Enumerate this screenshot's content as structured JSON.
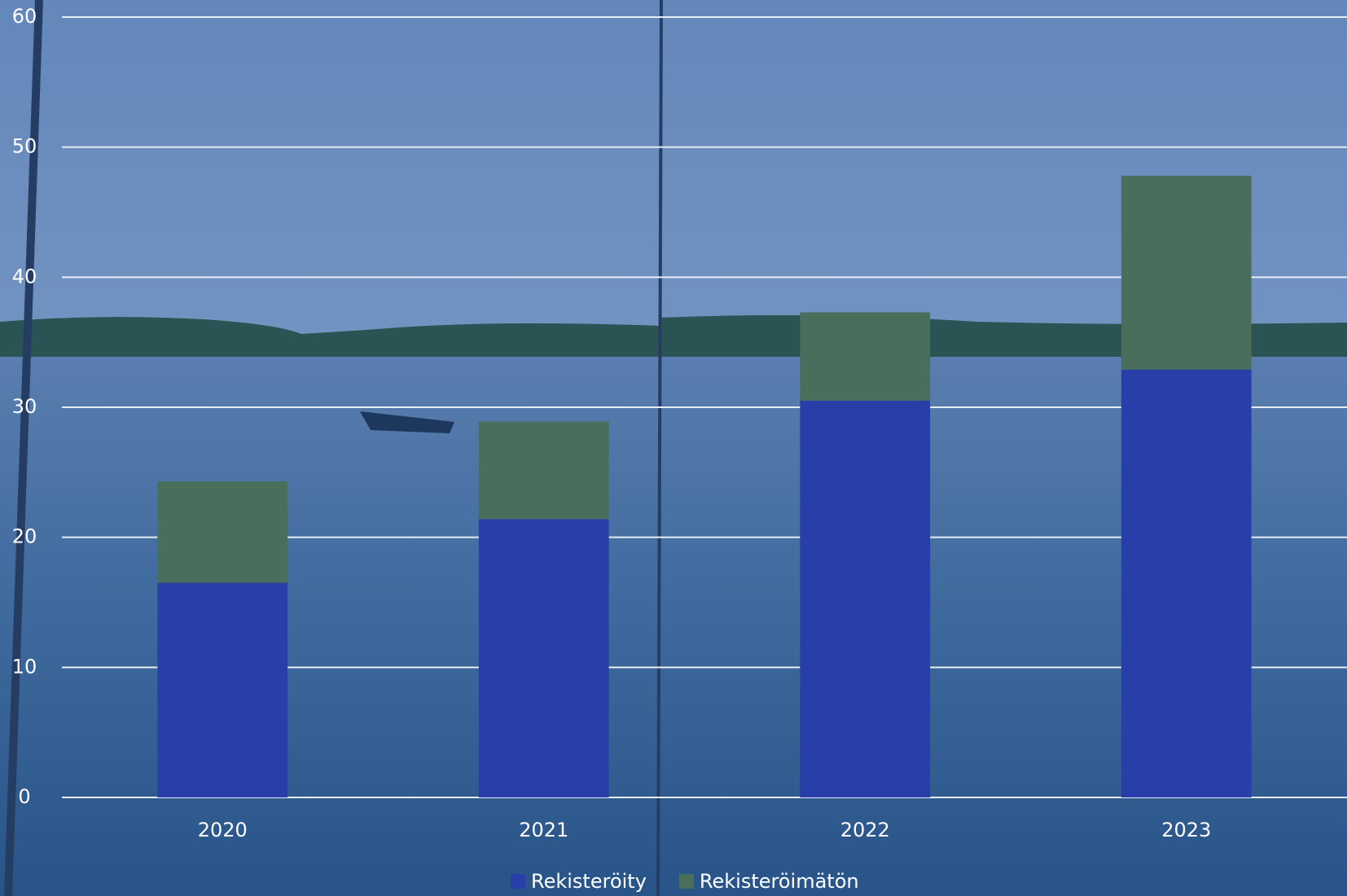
{
  "chart_data": {
    "type": "stacked_bar",
    "categories": [
      "2020",
      "2021",
      "2022",
      "2023"
    ],
    "series": [
      {
        "name": "Rekisteröity",
        "color": "#283ea9",
        "values": [
          16.5,
          21.4,
          30.5,
          32.9
        ]
      },
      {
        "name": "Rekisteröimätön",
        "color": "#4a6e5c",
        "values": [
          7.8,
          7.5,
          6.8,
          14.9
        ]
      }
    ],
    "ylim": [
      0,
      60
    ],
    "yticks": [
      0,
      10,
      20,
      30,
      40,
      50,
      60
    ],
    "grid": true,
    "legend": "bottom"
  }
}
